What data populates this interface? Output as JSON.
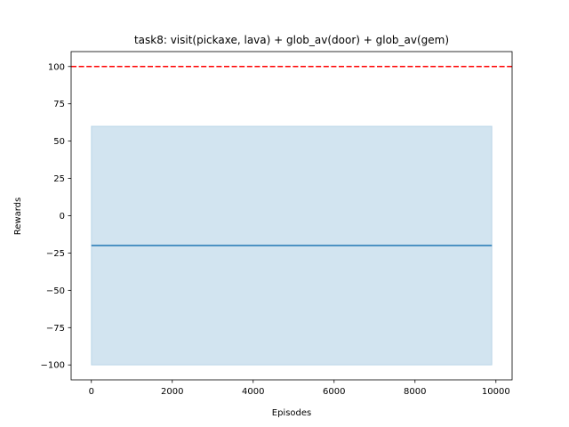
{
  "chart_data": {
    "type": "line",
    "title": "task8: visit(pickaxe, lava) + glob_av(door) + glob_av(gem)",
    "xlabel": "Episodes",
    "ylabel": "Rewards",
    "xlim": [
      -500,
      10400
    ],
    "ylim": [
      -110,
      110
    ],
    "xticks": [
      0,
      2000,
      4000,
      6000,
      8000,
      10000
    ],
    "yticks": [
      -100,
      -75,
      -50,
      -25,
      0,
      25,
      50,
      75,
      100
    ],
    "grid": false,
    "series": [
      {
        "x": [
          0,
          9900
        ],
        "y": [
          -20,
          -20
        ],
        "color": "#1f77b4",
        "band_lower": [
          -100,
          -100
        ],
        "band_upper": [
          60,
          60
        ],
        "band_color": "#1f77b4",
        "band_alpha": 0.2
      }
    ],
    "reference_line": {
      "y": 100,
      "color": "#ff0000",
      "style": "dashed"
    }
  }
}
